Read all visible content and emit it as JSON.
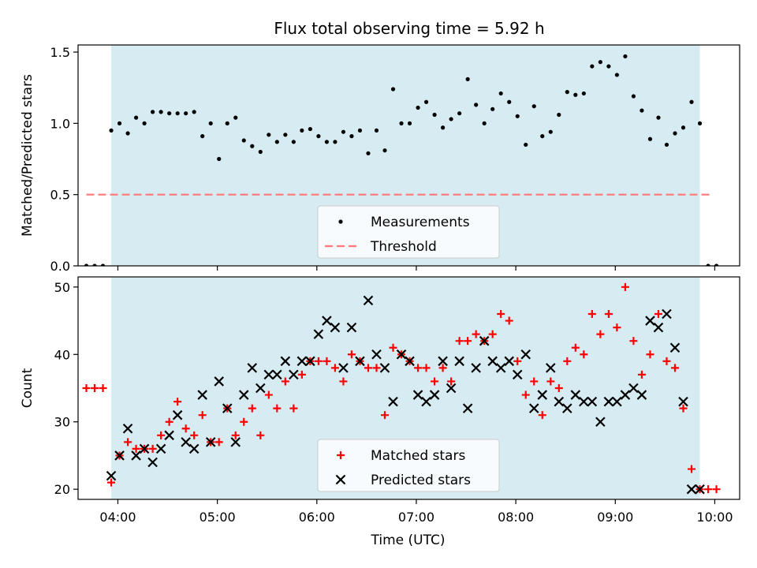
{
  "title": "Flux total observing time = 5.92 h",
  "chart_data": [
    {
      "type": "scatter",
      "ylabel": "Matched/Predicted stars",
      "ylim": [
        0,
        1.55
      ],
      "yticks": [
        "0.0",
        "0.5",
        "1.0",
        "1.5"
      ],
      "xlim": [
        "03:36",
        "10:15"
      ],
      "observing_window": [
        "03:56",
        "09:51"
      ],
      "threshold": 0.5,
      "threshold_span": [
        "03:41",
        "09:59"
      ],
      "colors": {
        "span": "#add8e6",
        "measurements": "#000000",
        "threshold": "#ff7777"
      },
      "legend": {
        "placement": "lower-center",
        "entries": [
          "Measurements",
          "Threshold"
        ]
      },
      "series": [
        {
          "name": "Measurements",
          "x": [
            "03:41",
            "03:46",
            "03:51",
            "03:56",
            "04:01",
            "04:06",
            "04:11",
            "04:16",
            "04:21",
            "04:26",
            "04:31",
            "04:36",
            "04:41",
            "04:46",
            "04:51",
            "04:56",
            "05:01",
            "05:06",
            "05:11",
            "05:16",
            "05:21",
            "05:26",
            "05:31",
            "05:36",
            "05:41",
            "05:46",
            "05:51",
            "05:56",
            "06:01",
            "06:06",
            "06:11",
            "06:16",
            "06:21",
            "06:26",
            "06:31",
            "06:36",
            "06:41",
            "06:46",
            "06:51",
            "06:56",
            "07:01",
            "07:06",
            "07:11",
            "07:16",
            "07:21",
            "07:26",
            "07:31",
            "07:36",
            "07:41",
            "07:46",
            "07:51",
            "07:56",
            "08:01",
            "08:06",
            "08:11",
            "08:16",
            "08:21",
            "08:26",
            "08:31",
            "08:36",
            "08:41",
            "08:46",
            "08:51",
            "08:56",
            "09:01",
            "09:06",
            "09:11",
            "09:16",
            "09:21",
            "09:26",
            "09:31",
            "09:36",
            "09:41",
            "09:46",
            "09:51",
            "09:56",
            "10:01"
          ],
          "y": [
            0,
            0,
            0,
            0.95,
            1.0,
            0.93,
            1.04,
            1.0,
            1.08,
            1.08,
            1.07,
            1.07,
            1.07,
            1.08,
            0.91,
            1.0,
            0.75,
            1.0,
            1.04,
            0.88,
            0.84,
            0.8,
            0.92,
            0.87,
            0.92,
            0.87,
            0.95,
            0.96,
            0.91,
            0.87,
            0.87,
            0.94,
            0.91,
            0.95,
            0.79,
            0.95,
            0.81,
            1.24,
            1.0,
            1.0,
            1.11,
            1.15,
            1.06,
            0.97,
            1.03,
            1.07,
            1.31,
            1.13,
            1.0,
            1.1,
            1.21,
            1.15,
            1.05,
            0.85,
            1.12,
            0.91,
            0.94,
            1.06,
            1.22,
            1.2,
            1.21,
            1.4,
            1.43,
            1.4,
            1.34,
            1.47,
            1.19,
            1.09,
            0.89,
            1.04,
            0.85,
            0.93,
            0.97,
            1.15,
            1.0,
            0,
            0
          ]
        }
      ]
    },
    {
      "type": "scatter",
      "xlabel": "Time (UTC)",
      "ylabel": "Count",
      "ylim": [
        18.5,
        51.5
      ],
      "yticks": [
        "20",
        "30",
        "40",
        "50"
      ],
      "xlim": [
        "03:36",
        "10:15"
      ],
      "xticks": [
        "04:00",
        "05:00",
        "06:00",
        "07:00",
        "08:00",
        "09:00",
        "10:00"
      ],
      "observing_window": [
        "03:56",
        "09:51"
      ],
      "colors": {
        "span": "#add8e6",
        "matched": "#ff0000",
        "predicted": "#000000"
      },
      "legend": {
        "placement": "lower-center",
        "entries": [
          "Matched stars",
          "Predicted stars"
        ]
      },
      "series": [
        {
          "name": "Matched stars",
          "x": [
            "03:41",
            "03:46",
            "03:51",
            "03:56",
            "04:01",
            "04:06",
            "04:11",
            "04:16",
            "04:21",
            "04:26",
            "04:31",
            "04:36",
            "04:41",
            "04:46",
            "04:51",
            "04:56",
            "05:01",
            "05:06",
            "05:11",
            "05:16",
            "05:21",
            "05:26",
            "05:31",
            "05:36",
            "05:41",
            "05:46",
            "05:51",
            "05:56",
            "06:01",
            "06:06",
            "06:11",
            "06:16",
            "06:21",
            "06:26",
            "06:31",
            "06:36",
            "06:41",
            "06:46",
            "06:51",
            "06:56",
            "07:01",
            "07:06",
            "07:11",
            "07:16",
            "07:21",
            "07:26",
            "07:31",
            "07:36",
            "07:41",
            "07:46",
            "07:51",
            "07:56",
            "08:01",
            "08:06",
            "08:11",
            "08:16",
            "08:21",
            "08:26",
            "08:31",
            "08:36",
            "08:41",
            "08:46",
            "08:51",
            "08:56",
            "09:01",
            "09:06",
            "09:11",
            "09:16",
            "09:21",
            "09:26",
            "09:31",
            "09:36",
            "09:41",
            "09:46",
            "09:51",
            "09:56",
            "10:01"
          ],
          "y": [
            35,
            35,
            35,
            21,
            25,
            27,
            26,
            26,
            26,
            28,
            30,
            33,
            29,
            28,
            31,
            27,
            27,
            32,
            28,
            30,
            32,
            28,
            34,
            32,
            36,
            32,
            37,
            39,
            39,
            39,
            38,
            36,
            40,
            39,
            38,
            38,
            31,
            41,
            40,
            39,
            38,
            38,
            36,
            38,
            36,
            42,
            42,
            43,
            42,
            43,
            46,
            45,
            39,
            34,
            36,
            31,
            36,
            35,
            39,
            41,
            40,
            46,
            43,
            46,
            44,
            50,
            42,
            37,
            40,
            46,
            39,
            38,
            32,
            23,
            20,
            20,
            20
          ]
        },
        {
          "name": "Predicted stars",
          "x": [
            "03:56",
            "04:01",
            "04:06",
            "04:11",
            "04:16",
            "04:21",
            "04:26",
            "04:31",
            "04:36",
            "04:41",
            "04:46",
            "04:51",
            "04:56",
            "05:01",
            "05:06",
            "05:11",
            "05:16",
            "05:21",
            "05:26",
            "05:31",
            "05:36",
            "05:41",
            "05:46",
            "05:51",
            "05:56",
            "06:01",
            "06:06",
            "06:11",
            "06:16",
            "06:21",
            "06:26",
            "06:31",
            "06:36",
            "06:41",
            "06:46",
            "06:51",
            "06:56",
            "07:01",
            "07:06",
            "07:11",
            "07:16",
            "07:21",
            "07:26",
            "07:31",
            "07:36",
            "07:41",
            "07:46",
            "07:51",
            "07:56",
            "08:01",
            "08:06",
            "08:11",
            "08:16",
            "08:21",
            "08:26",
            "08:31",
            "08:36",
            "08:41",
            "08:46",
            "08:51",
            "08:56",
            "09:01",
            "09:06",
            "09:11",
            "09:16",
            "09:21",
            "09:26",
            "09:31",
            "09:36",
            "09:41",
            "09:46",
            "09:51"
          ],
          "y": [
            22,
            25,
            29,
            25,
            26,
            24,
            26,
            28,
            31,
            27,
            26,
            34,
            27,
            36,
            32,
            27,
            34,
            38,
            35,
            37,
            37,
            39,
            37,
            39,
            39,
            43,
            45,
            44,
            38,
            44,
            39,
            48,
            40,
            38,
            33,
            40,
            39,
            34,
            33,
            34,
            39,
            35,
            39,
            32,
            38,
            42,
            39,
            38,
            39,
            37,
            40,
            32,
            34,
            38,
            33,
            32,
            34,
            33,
            33,
            30,
            33,
            33,
            34,
            35,
            34,
            45,
            44,
            46,
            41,
            33,
            20,
            20
          ]
        }
      ]
    }
  ]
}
